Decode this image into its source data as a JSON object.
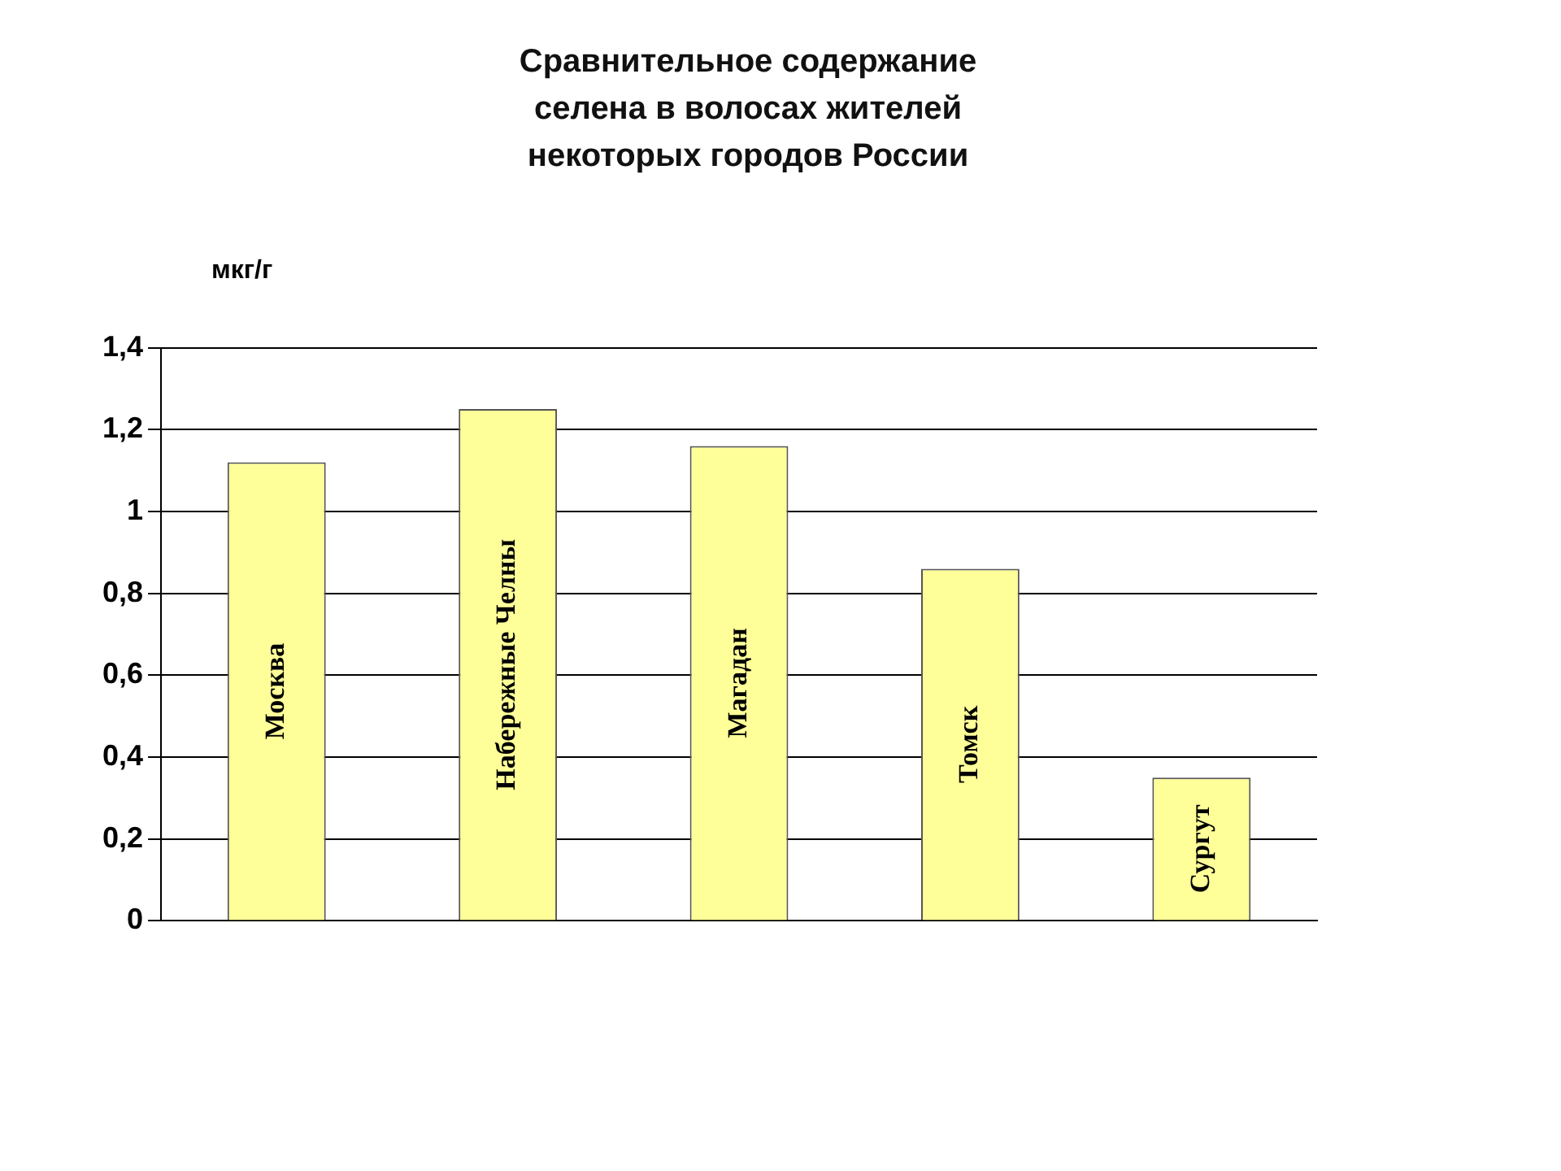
{
  "chart_data": {
    "type": "bar",
    "title": [
      "Сравнительное содержание",
      "селена в волосах жителей",
      "некоторых городов России"
    ],
    "ylabel": "мкг/г",
    "categories": [
      "Москва",
      "Набережные Челны",
      "Магадан",
      "Томск",
      "Сургут"
    ],
    "values": [
      1.12,
      1.25,
      1.16,
      0.86,
      0.35
    ],
    "color": "#ffff99",
    "ylim": [
      0,
      1.4
    ],
    "yticks": [
      0,
      {
        "value": 0.2,
        "label": "0,2"
      },
      {
        "value": 0.4,
        "label": "0,4"
      },
      {
        "value": 0.6,
        "label": "0,6"
      },
      {
        "value": 0.8,
        "label": "0,8"
      },
      1,
      {
        "value": 1.2,
        "label": "1,2"
      },
      {
        "value": 1.4,
        "label": "1,4"
      }
    ],
    "grid": "y",
    "legend": false
  }
}
